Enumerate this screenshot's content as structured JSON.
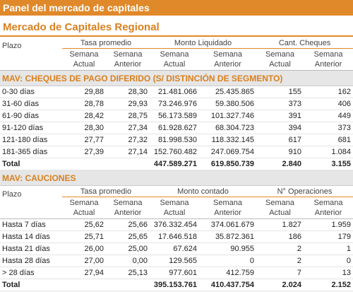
{
  "header": {
    "title": "Panel del mercado de capitales",
    "subtitle": "Mercado de Capitales Regional"
  },
  "tables": [
    {
      "title": "MAV: CHEQUES DE PAGO DIFERIDO (S/ DISTINCIÓN DE SEGMENTO)",
      "row_header": "Plazo",
      "groups": [
        "Tasa promedio",
        "Monto Liquidado",
        "Cant. Cheques"
      ],
      "subheaders": [
        "Semana Actual",
        "Semana Anterior",
        "Semana Actual",
        "Semana Anterior",
        "Semana Actual",
        "Semana Anterior"
      ],
      "rows": [
        [
          "0-30 días",
          "29,88",
          "28,30",
          "21.481.066",
          "25.435.865",
          "155",
          "162"
        ],
        [
          "31-60 días",
          "28,78",
          "29,93",
          "73.246.976",
          "59.380.506",
          "373",
          "406"
        ],
        [
          "61-90 días",
          "28,42",
          "28,75",
          "56.173.589",
          "101.327.746",
          "391",
          "449"
        ],
        [
          "91-120 días",
          "28,30",
          "27,34",
          "61.928.627",
          "68.304.723",
          "394",
          "373"
        ],
        [
          "121-180 días",
          "27,77",
          "27,32",
          "81.998.530",
          "118.332.145",
          "617",
          "681"
        ],
        [
          "181-365 días",
          "27,39",
          "27,14",
          "152.760.482",
          "247.069.754",
          "910",
          "1.084"
        ]
      ],
      "total": {
        "label": "Total",
        "values": [
          "447.589.271",
          "619.850.739",
          "2.840",
          "3.155"
        ]
      }
    },
    {
      "title": "MAV: CAUCIONES",
      "row_header": "Plazo",
      "groups": [
        "Tasa promedio",
        "Monto contado",
        "N° Operaciones"
      ],
      "subheaders": [
        "Semana Actual",
        "Semana Anterior",
        "Semana Actual",
        "Semana Anterior",
        "Semana Actual",
        "Semana Anterior"
      ],
      "rows": [
        [
          "Hasta 7 días",
          "25,62",
          "25,66",
          "376.332.454",
          "374.061.679",
          "1.827",
          "1.959"
        ],
        [
          "Hasta 14 días",
          "25,71",
          "25,65",
          "17.646.518",
          "35.872.361",
          "186",
          "179"
        ],
        [
          "Hasta 21 días",
          "26,00",
          "25,00",
          "67.624",
          "90.955",
          "2",
          "1"
        ],
        [
          "Hasta 28 días",
          "27,00",
          "0,00",
          "129.565",
          "0",
          "2",
          "0"
        ],
        [
          "> 28 días",
          "27,94",
          "25,13",
          "977.601",
          "412.759",
          "7",
          "13"
        ]
      ],
      "total": {
        "label": "Total",
        "values": [
          "395.153.761",
          "410.437.754",
          "2.024",
          "2.152"
        ]
      }
    }
  ]
}
